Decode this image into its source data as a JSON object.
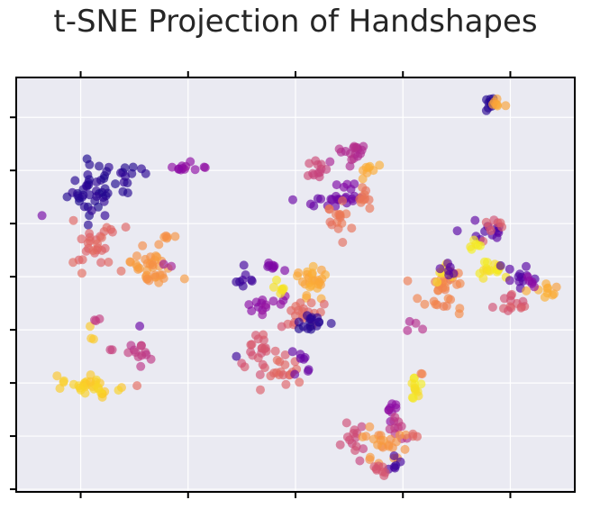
{
  "chart_data": {
    "type": "scatter",
    "title": "t-SNE Projection of Handshapes",
    "xlabel": "",
    "ylabel": "",
    "tick_labels_shown": false,
    "grid": true,
    "background": "#eaeaf2",
    "grid_color": "#ffffff",
    "colormap": "plasma",
    "marker_alpha": 0.65,
    "xlim": [
      0,
      10.4
    ],
    "ylim": [
      0,
      7.8
    ],
    "xticks": [
      1.2,
      3.2,
      5.2,
      7.2,
      9.2
    ],
    "yticks": [
      0.05,
      1.05,
      2.05,
      3.05,
      4.05,
      5.05,
      6.05,
      7.05
    ],
    "clusters": [
      {
        "c": 0.05,
        "x": 1.4,
        "y": 5.7,
        "sx": 0.22,
        "sy": 0.28,
        "n": 42
      },
      {
        "c": 0.05,
        "x": 2.0,
        "y": 5.9,
        "sx": 0.22,
        "sy": 0.12,
        "n": 14
      },
      {
        "c": 0.3,
        "x": 3.15,
        "y": 6.1,
        "sx": 0.14,
        "sy": 0.06,
        "n": 12
      },
      {
        "c": 0.22,
        "x": 0.48,
        "y": 5.2,
        "sx": 0.0,
        "sy": 0.0,
        "n": 1
      },
      {
        "c": 0.6,
        "x": 1.45,
        "y": 4.6,
        "sx": 0.25,
        "sy": 0.2,
        "n": 30
      },
      {
        "c": 0.75,
        "x": 2.5,
        "y": 4.25,
        "sx": 0.22,
        "sy": 0.22,
        "n": 36
      },
      {
        "c": 0.75,
        "x": 2.8,
        "y": 4.8,
        "sx": 0.06,
        "sy": 0.03,
        "n": 5
      },
      {
        "c": 0.35,
        "x": 2.85,
        "y": 4.25,
        "sx": 0.03,
        "sy": 0.03,
        "n": 2
      },
      {
        "c": 0.9,
        "x": 1.4,
        "y": 2.0,
        "sx": 0.25,
        "sy": 0.09,
        "n": 32
      },
      {
        "c": 0.9,
        "x": 1.4,
        "y": 2.95,
        "sx": 0.03,
        "sy": 0.08,
        "n": 3
      },
      {
        "c": 0.45,
        "x": 1.5,
        "y": 3.2,
        "sx": 0.05,
        "sy": 0.02,
        "n": 3
      },
      {
        "c": 0.45,
        "x": 2.3,
        "y": 2.65,
        "sx": 0.12,
        "sy": 0.12,
        "n": 12
      },
      {
        "c": 0.2,
        "x": 2.3,
        "y": 3.12,
        "sx": 0.0,
        "sy": 0.0,
        "n": 1
      },
      {
        "c": 0.5,
        "x": 1.8,
        "y": 2.7,
        "sx": 0.04,
        "sy": 0.04,
        "n": 2
      },
      {
        "c": 0.6,
        "x": 2.25,
        "y": 2.0,
        "sx": 0.0,
        "sy": 0.0,
        "n": 1
      },
      {
        "c": 0.5,
        "x": 5.6,
        "y": 6.05,
        "sx": 0.15,
        "sy": 0.12,
        "n": 12
      },
      {
        "c": 0.4,
        "x": 6.25,
        "y": 6.4,
        "sx": 0.12,
        "sy": 0.12,
        "n": 18
      },
      {
        "c": 0.82,
        "x": 6.5,
        "y": 6.05,
        "sx": 0.12,
        "sy": 0.06,
        "n": 8
      },
      {
        "c": 0.2,
        "x": 5.75,
        "y": 5.5,
        "sx": 0.28,
        "sy": 0.07,
        "n": 20
      },
      {
        "c": 0.25,
        "x": 6.1,
        "y": 5.75,
        "sx": 0.1,
        "sy": 0.07,
        "n": 5
      },
      {
        "c": 0.65,
        "x": 6.0,
        "y": 5.05,
        "sx": 0.14,
        "sy": 0.25,
        "n": 16
      },
      {
        "c": 0.65,
        "x": 6.5,
        "y": 5.5,
        "sx": 0.15,
        "sy": 0.12,
        "n": 10
      },
      {
        "c": 0.05,
        "x": 8.8,
        "y": 7.3,
        "sx": 0.05,
        "sy": 0.08,
        "n": 8
      },
      {
        "c": 0.8,
        "x": 8.95,
        "y": 7.3,
        "sx": 0.05,
        "sy": 0.08,
        "n": 7
      },
      {
        "c": 0.15,
        "x": 8.6,
        "y": 4.9,
        "sx": 0.25,
        "sy": 0.1,
        "n": 12
      },
      {
        "c": 0.55,
        "x": 8.85,
        "y": 5.0,
        "sx": 0.15,
        "sy": 0.1,
        "n": 8
      },
      {
        "c": 0.95,
        "x": 8.8,
        "y": 4.2,
        "sx": 0.18,
        "sy": 0.06,
        "n": 18
      },
      {
        "c": 0.97,
        "x": 8.55,
        "y": 4.65,
        "sx": 0.08,
        "sy": 0.06,
        "n": 6
      },
      {
        "c": 0.15,
        "x": 9.3,
        "y": 4.1,
        "sx": 0.15,
        "sy": 0.12,
        "n": 12
      },
      {
        "c": 0.7,
        "x": 8.0,
        "y": 3.75,
        "sx": 0.25,
        "sy": 0.22,
        "n": 30
      },
      {
        "c": 0.92,
        "x": 7.95,
        "y": 4.1,
        "sx": 0.1,
        "sy": 0.08,
        "n": 8
      },
      {
        "c": 0.15,
        "x": 8.1,
        "y": 4.25,
        "sx": 0.1,
        "sy": 0.08,
        "n": 6
      },
      {
        "c": 0.55,
        "x": 9.2,
        "y": 3.55,
        "sx": 0.16,
        "sy": 0.12,
        "n": 14
      },
      {
        "c": 0.8,
        "x": 9.9,
        "y": 3.85,
        "sx": 0.1,
        "sy": 0.08,
        "n": 10
      },
      {
        "c": 0.3,
        "x": 9.6,
        "y": 3.95,
        "sx": 0.08,
        "sy": 0.08,
        "n": 5
      },
      {
        "c": 0.1,
        "x": 4.2,
        "y": 3.95,
        "sx": 0.15,
        "sy": 0.1,
        "n": 8
      },
      {
        "c": 0.25,
        "x": 4.75,
        "y": 4.25,
        "sx": 0.15,
        "sy": 0.08,
        "n": 8
      },
      {
        "c": 0.3,
        "x": 4.55,
        "y": 3.55,
        "sx": 0.18,
        "sy": 0.12,
        "n": 14
      },
      {
        "c": 0.95,
        "x": 4.85,
        "y": 3.85,
        "sx": 0.1,
        "sy": 0.1,
        "n": 7
      },
      {
        "c": 0.8,
        "x": 5.45,
        "y": 3.95,
        "sx": 0.2,
        "sy": 0.15,
        "n": 26
      },
      {
        "c": 0.6,
        "x": 5.4,
        "y": 3.3,
        "sx": 0.2,
        "sy": 0.15,
        "n": 18
      },
      {
        "c": 0.05,
        "x": 5.45,
        "y": 3.2,
        "sx": 0.15,
        "sy": 0.1,
        "n": 16
      },
      {
        "c": 0.55,
        "x": 4.55,
        "y": 2.65,
        "sx": 0.22,
        "sy": 0.25,
        "n": 24
      },
      {
        "c": 0.6,
        "x": 4.95,
        "y": 2.3,
        "sx": 0.15,
        "sy": 0.15,
        "n": 16
      },
      {
        "c": 0.2,
        "x": 5.3,
        "y": 2.55,
        "sx": 0.1,
        "sy": 0.1,
        "n": 8
      },
      {
        "c": 0.1,
        "x": 4.1,
        "y": 2.55,
        "sx": 0.0,
        "sy": 0.0,
        "n": 1
      },
      {
        "c": 0.4,
        "x": 7.4,
        "y": 3.15,
        "sx": 0.08,
        "sy": 0.06,
        "n": 4
      },
      {
        "c": 0.95,
        "x": 7.45,
        "y": 1.95,
        "sx": 0.07,
        "sy": 0.15,
        "n": 12
      },
      {
        "c": 0.7,
        "x": 7.55,
        "y": 2.2,
        "sx": 0.02,
        "sy": 0.02,
        "n": 2
      },
      {
        "c": 0.3,
        "x": 7.0,
        "y": 1.55,
        "sx": 0.1,
        "sy": 0.08,
        "n": 8
      },
      {
        "c": 0.45,
        "x": 7.1,
        "y": 1.2,
        "sx": 0.15,
        "sy": 0.1,
        "n": 10
      },
      {
        "c": 0.5,
        "x": 6.25,
        "y": 0.95,
        "sx": 0.12,
        "sy": 0.2,
        "n": 14
      },
      {
        "c": 0.75,
        "x": 6.85,
        "y": 0.9,
        "sx": 0.22,
        "sy": 0.2,
        "n": 24
      },
      {
        "c": 0.1,
        "x": 7.05,
        "y": 0.55,
        "sx": 0.08,
        "sy": 0.08,
        "n": 6
      },
      {
        "c": 0.55,
        "x": 6.8,
        "y": 0.4,
        "sx": 0.06,
        "sy": 0.06,
        "n": 8
      },
      {
        "c": 0.6,
        "x": 7.4,
        "y": 1.05,
        "sx": 0.05,
        "sy": 0.05,
        "n": 3
      }
    ]
  }
}
